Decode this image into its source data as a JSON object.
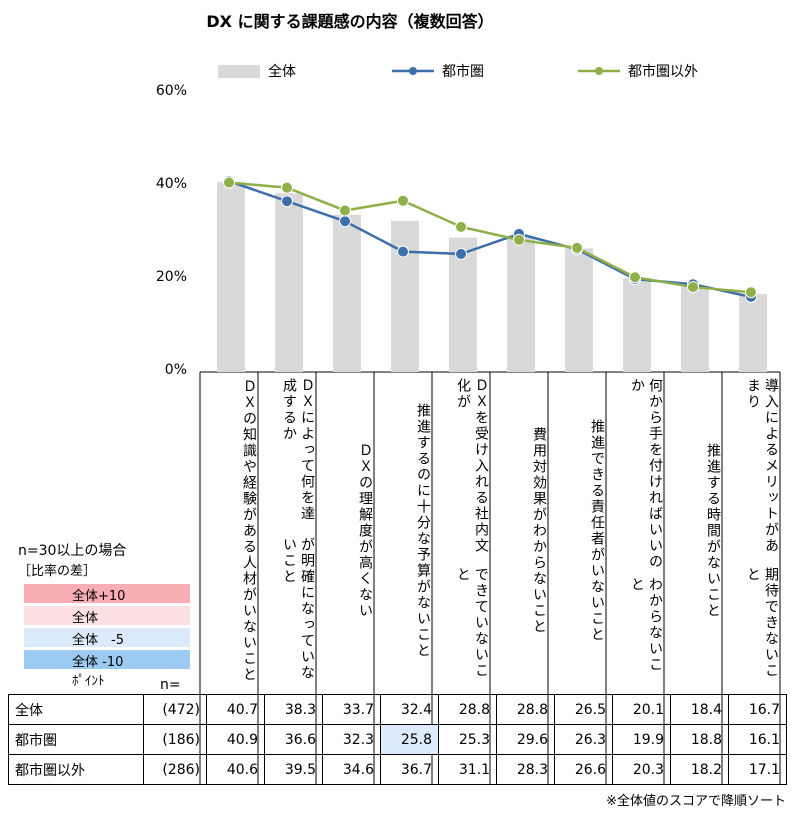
{
  "title": "DX に関する課題感の内容（複数回答）",
  "legend": {
    "all": "全体",
    "urban": "都市圏",
    "non_urban": "都市圏以外"
  },
  "colors": {
    "bar": "#d9d9d9",
    "urban": "#3f6fab",
    "non_urban": "#8faf48",
    "plus10": "#f8aeb4",
    "plus5": "#fde0e2",
    "minus5": "#dcebfb",
    "minus10": "#9ccaf2"
  },
  "y_ticks": [
    "60%",
    "40%",
    "20%",
    "0%"
  ],
  "note": {
    "title": "n=30以上の場合",
    "subtitle": "［比率の差］",
    "items": [
      {
        "label": "全体+10ﾎﾟｲﾝﾄ",
        "color": "#f8aeb4"
      },
      {
        "label": "全体　+5ﾎﾟｲﾝﾄ",
        "color": "#fde0e2"
      },
      {
        "label": "全体　-5ﾎﾟｲﾝﾄ",
        "color": "#dcebfb"
      },
      {
        "label": "全体 -10ﾎﾟｲﾝﾄ",
        "color": "#9ccaf2"
      }
    ]
  },
  "n_label": "n=",
  "footnote": "※全体値のスコアで降順ソート",
  "chart_data": {
    "type": "bar",
    "ylim": [
      0,
      60
    ],
    "categories": [
      [
        "ＤＸの知識や経験がある人材",
        "がいないこと"
      ],
      [
        "ＤＸによって何を達成するか",
        "が明確になっていないこと"
      ],
      [
        "ＤＸの理解度が高くない"
      ],
      [
        "推進するのに十分な予算がな",
        "いこと"
      ],
      [
        "ＤＸを受け入れる社内文化が",
        "できていないこと"
      ],
      [
        "費用対効果がわからないこと"
      ],
      [
        "推進できる責任者がいないこ",
        "と"
      ],
      [
        "何から手を付ければいいのか",
        "わからないこと"
      ],
      [
        "推進する時間がないこと"
      ],
      [
        "導入によるメリットがあまり",
        "期待できないこと"
      ]
    ],
    "series": [
      {
        "name": "全体",
        "type": "bar",
        "n": "(472)",
        "values": [
          40.7,
          38.3,
          33.7,
          32.4,
          28.8,
          28.8,
          26.5,
          20.1,
          18.4,
          16.7
        ]
      },
      {
        "name": "都市圏",
        "type": "line",
        "n": "(186)",
        "values": [
          40.9,
          36.6,
          32.3,
          25.8,
          25.3,
          29.6,
          26.3,
          19.9,
          18.8,
          16.1
        ]
      },
      {
        "name": "都市圏以外",
        "type": "line",
        "n": "(286)",
        "values": [
          40.6,
          39.5,
          34.6,
          36.7,
          31.1,
          28.3,
          26.6,
          20.3,
          18.2,
          17.1
        ]
      }
    ],
    "highlights": [
      {
        "series": 1,
        "index": 3,
        "level": "minus5"
      }
    ]
  }
}
